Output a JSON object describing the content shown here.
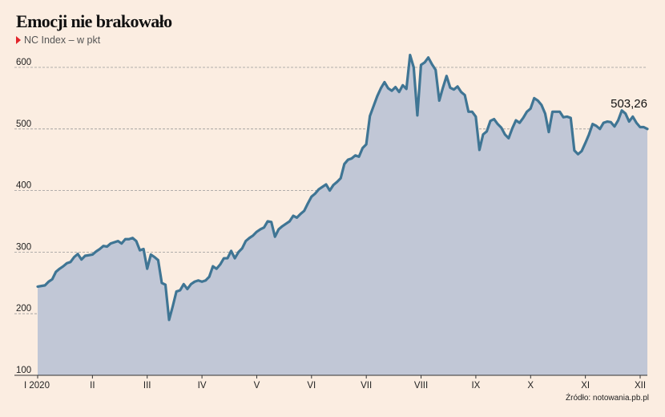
{
  "header": {
    "title": "Emocji nie brakowało",
    "subtitle": "NC Index – w pkt"
  },
  "source": "Źródło: notowania.pb.pl",
  "colors": {
    "background": "#fbede1",
    "line": "#3f7594",
    "area": "#c1c7d6",
    "marker": "#e2242a"
  },
  "chart_data": {
    "type": "area",
    "title": "Emocji nie brakowało",
    "subtitle": "NC Index – w pkt",
    "ylim": [
      100,
      600
    ],
    "yticks": [
      100,
      200,
      300,
      400,
      500,
      600
    ],
    "grid": true,
    "x_tick_labels": [
      "I 2020",
      "II",
      "III",
      "IV",
      "V",
      "VI",
      "VII",
      "VIII",
      "IX",
      "X",
      "XI",
      "XII"
    ],
    "annotation": "503,26",
    "series": [
      {
        "values": [
          244,
          245,
          246,
          252,
          256,
          268,
          273,
          277,
          282,
          284,
          292,
          297,
          288,
          294,
          295,
          296,
          301,
          305,
          310,
          309,
          314,
          316,
          318,
          314,
          321,
          321,
          323,
          318,
          303,
          305,
          273,
          296,
          292,
          287,
          250,
          247,
          190,
          212,
          236,
          238,
          248,
          240,
          248,
          252,
          254,
          252,
          254,
          260,
          277,
          273,
          280,
          290,
          290,
          302,
          290,
          300,
          306,
          318,
          323,
          327,
          333,
          337,
          340,
          350,
          349,
          325,
          337,
          342,
          346,
          350,
          359,
          356,
          362,
          367,
          379,
          390,
          395,
          402,
          406,
          410,
          400,
          409,
          414,
          420,
          443,
          450,
          452,
          457,
          455,
          469,
          475,
          521,
          537,
          553,
          566,
          576,
          566,
          562,
          568,
          560,
          571,
          565,
          620,
          600,
          522,
          604,
          608,
          616,
          605,
          596,
          546,
          567,
          586,
          567,
          564,
          569,
          560,
          555,
          528,
          528,
          520,
          466,
          491,
          496,
          513,
          516,
          508,
          502,
          491,
          485,
          501,
          514,
          510,
          518,
          528,
          533,
          550,
          546,
          539,
          525,
          495,
          528,
          528,
          528,
          519,
          520,
          518,
          465,
          459,
          464,
          477,
          491,
          508,
          505,
          500,
          510,
          512,
          511,
          504,
          514,
          530,
          525,
          512,
          520,
          510,
          503,
          503,
          500
        ]
      }
    ]
  }
}
